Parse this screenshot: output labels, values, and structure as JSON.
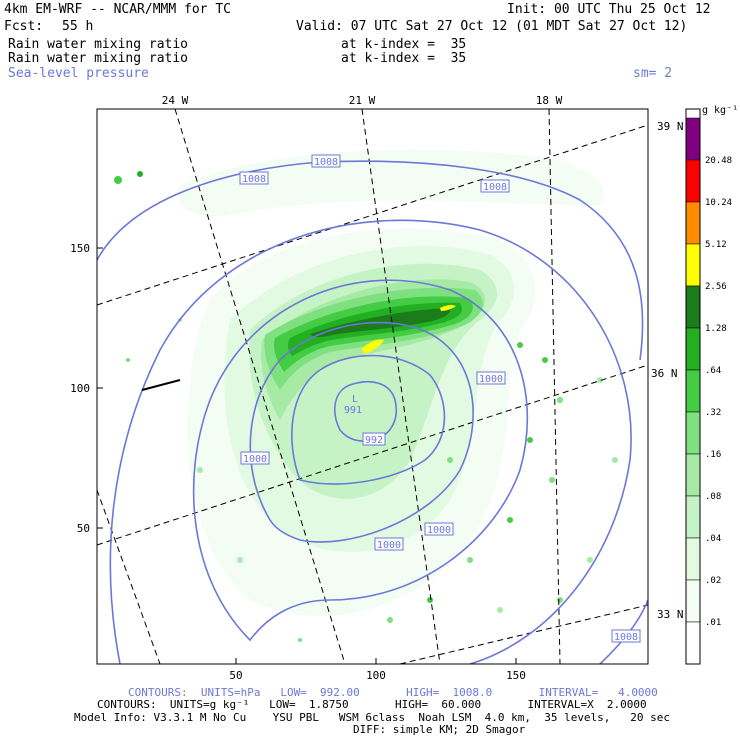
{
  "header": {
    "model_title": "4km EM-WRF -- NCAR/MMM for TC",
    "init": "Init: 00 UTC Thu 25 Oct 12",
    "fcst_label": "Fcst:",
    "fcst_value": "55 h",
    "valid": "Valid: 07 UTC Sat 27 Oct 12 (01 MDT Sat 27 Oct 12)",
    "field1_name": "Rain water mixing ratio",
    "field1_level": "at k-index =  35",
    "field2_name": "Rain water mixing ratio",
    "field2_level": "at k-index =  35",
    "field3_name": "Sea-level pressure",
    "smoothing": "sm= 2"
  },
  "map": {
    "lon_labels_top": [
      "24 W",
      "21 W",
      "18 W"
    ],
    "lat_labels_right": [
      "39 N",
      "36 N",
      "33 N"
    ],
    "x_ticks": [
      "50",
      "100",
      "150"
    ],
    "y_ticks": [
      "150",
      "100",
      "50"
    ],
    "low_center": {
      "symbol": "L",
      "value": "991"
    },
    "contour_labels": [
      "1008",
      "1008",
      "1008",
      "1008",
      "1000",
      "1000",
      "1000",
      "1000",
      "992"
    ]
  },
  "colorbar": {
    "units": "g kg⁻¹",
    "levels": [
      "20.48",
      "10.24",
      "5.12",
      "2.56",
      "1.28",
      ".64",
      ".32",
      ".16",
      ".08",
      ".04",
      ".02",
      ".01"
    ],
    "colors": [
      "#800080",
      "#ff0000",
      "#ff8c00",
      "#ffff00",
      "#1a7d1a",
      "#22b022",
      "#44cc44",
      "#7ee07e",
      "#a6eaa6",
      "#c6f3c6",
      "#e2f9e2",
      "#f4fdf4",
      "#ffffff"
    ]
  },
  "footer": {
    "line1": "CONTOURS:  UNITS=hPa   LOW=  992.00       HIGH=  1008.0       INTERVAL=   4.0000",
    "line2": "CONTOURS:  UNITS=g kg⁻¹   LOW=  1.8750       HIGH=  60.000       INTERVAL=X  2.0000",
    "line3": "Model Info: V3.3.1 M No Cu    YSU PBL   WSM 6class  Noah LSM  4.0 km,  35 levels,   20 sec",
    "line4": "DIFF: simple KM; 2D Smagor"
  }
}
